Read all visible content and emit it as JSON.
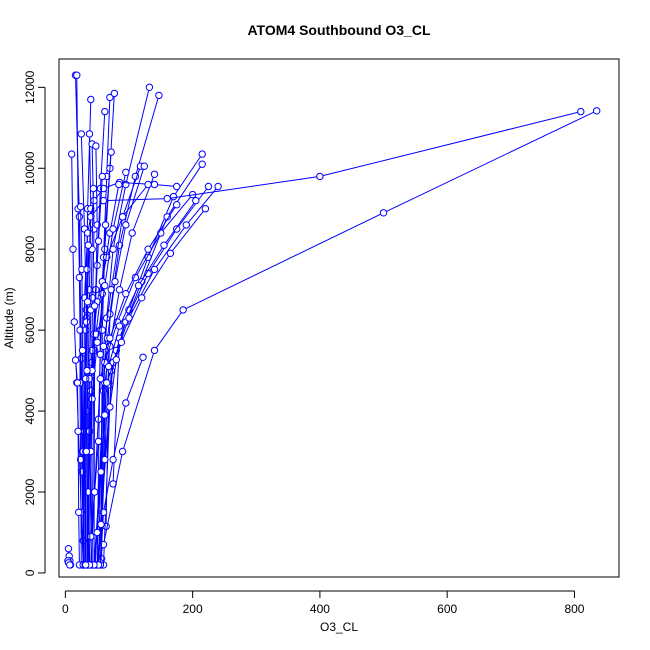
{
  "chart_data": {
    "type": "line",
    "title": "ATOM4 Southbound O3_CL",
    "xlabel": "O3_CL",
    "ylabel": "Altitude (m)",
    "xlim": [
      -10,
      870
    ],
    "ylim": [
      -100,
      12700
    ],
    "xticks": [
      0,
      200,
      400,
      600,
      800
    ],
    "yticks": [
      0,
      2000,
      4000,
      6000,
      8000,
      10000,
      12000
    ],
    "grid": false,
    "legend": "none",
    "marker": "open-circle",
    "colors": {
      "series": "#0000ff",
      "axes": "#000000"
    },
    "series": [
      {
        "points": [
          [
            16,
            12300
          ],
          [
            22,
            8800
          ],
          [
            25,
            5300
          ],
          [
            27,
            3000
          ],
          [
            28,
            800
          ],
          [
            28,
            200
          ]
        ]
      },
      {
        "points": [
          [
            18,
            12300
          ],
          [
            20,
            9000
          ],
          [
            24,
            6000
          ],
          [
            26,
            2500
          ],
          [
            29,
            200
          ]
        ]
      },
      {
        "points": [
          [
            40,
            11700
          ],
          [
            35,
            9000
          ],
          [
            33,
            6500
          ],
          [
            30,
            3500
          ],
          [
            29,
            200
          ]
        ]
      },
      {
        "points": [
          [
            10,
            10350
          ],
          [
            12,
            8000
          ],
          [
            14,
            6200
          ],
          [
            18,
            4700
          ],
          [
            25,
            1500
          ],
          [
            28,
            200
          ]
        ]
      },
      {
        "points": [
          [
            25,
            10850
          ],
          [
            30,
            8500
          ],
          [
            33,
            6300
          ],
          [
            35,
            4000
          ],
          [
            36,
            200
          ]
        ]
      },
      {
        "points": [
          [
            38,
            10850
          ],
          [
            40,
            9000
          ],
          [
            38,
            7000
          ],
          [
            36,
            5000
          ],
          [
            34,
            200
          ]
        ]
      },
      {
        "points": [
          [
            42,
            10600
          ],
          [
            45,
            8500
          ],
          [
            43,
            6800
          ],
          [
            41,
            5200
          ],
          [
            40,
            3000
          ],
          [
            42,
            200
          ]
        ]
      },
      {
        "points": [
          [
            48,
            10550
          ],
          [
            50,
            8600
          ],
          [
            48,
            7000
          ],
          [
            46,
            5500
          ],
          [
            45,
            200
          ]
        ]
      },
      {
        "points": [
          [
            62,
            11400
          ],
          [
            55,
            9500
          ],
          [
            50,
            7600
          ],
          [
            45,
            5900
          ],
          [
            42,
            200
          ]
        ]
      },
      {
        "points": [
          [
            70,
            11750
          ],
          [
            65,
            9800
          ],
          [
            60,
            7800
          ],
          [
            55,
            6000
          ],
          [
            50,
            200
          ]
        ]
      },
      {
        "points": [
          [
            77,
            11850
          ],
          [
            70,
            10000
          ],
          [
            62,
            8000
          ],
          [
            58,
            6000
          ],
          [
            56,
            200
          ]
        ]
      },
      {
        "points": [
          [
            132,
            12000
          ],
          [
            95,
            9600
          ],
          [
            75,
            8000
          ],
          [
            65,
            6300
          ],
          [
            60,
            4500
          ],
          [
            57,
            350
          ]
        ]
      },
      {
        "points": [
          [
            147,
            11800
          ],
          [
            110,
            9800
          ],
          [
            85,
            8100
          ],
          [
            70,
            6400
          ],
          [
            64,
            1150
          ]
        ]
      },
      {
        "points": [
          [
            72,
            10400
          ],
          [
            63,
            8600
          ],
          [
            58,
            6900
          ],
          [
            55,
            5400
          ],
          [
            52,
            3800
          ]
        ]
      },
      {
        "points": [
          [
            118,
            10050
          ],
          [
            90,
            8800
          ],
          [
            72,
            7000
          ],
          [
            60,
            5600
          ],
          [
            52,
            200
          ]
        ]
      },
      {
        "points": [
          [
            124,
            10050
          ],
          [
            95,
            8600
          ],
          [
            78,
            7200
          ],
          [
            66,
            5800
          ],
          [
            56,
            200
          ]
        ]
      },
      {
        "points": [
          [
            140,
            9850
          ],
          [
            105,
            8400
          ],
          [
            85,
            7000
          ],
          [
            70,
            5600
          ],
          [
            62,
            4700
          ],
          [
            55,
            200
          ]
        ]
      },
      {
        "points": [
          [
            215,
            10350
          ],
          [
            170,
            9300
          ],
          [
            130,
            7800
          ],
          [
            100,
            6500
          ],
          [
            80,
            5500
          ],
          [
            70,
            4650
          ]
        ]
      },
      {
        "points": [
          [
            215,
            10100
          ],
          [
            160,
            8800
          ],
          [
            120,
            7200
          ],
          [
            85,
            5800
          ],
          [
            75,
            2200
          ]
        ]
      },
      {
        "points": [
          [
            225,
            9550
          ],
          [
            175,
            8500
          ],
          [
            130,
            7400
          ],
          [
            95,
            6200
          ],
          [
            72,
            5000
          ],
          [
            60,
            200
          ]
        ]
      },
      {
        "points": [
          [
            240,
            9550
          ],
          [
            190,
            8600
          ],
          [
            140,
            7500
          ],
          [
            100,
            6300
          ],
          [
            75,
            5200
          ],
          [
            50,
            200
          ]
        ]
      },
      {
        "points": [
          [
            200,
            9350
          ],
          [
            150,
            8400
          ],
          [
            110,
            7300
          ],
          [
            82,
            6200
          ],
          [
            62,
            5200
          ],
          [
            47,
            200
          ]
        ]
      },
      {
        "points": [
          [
            205,
            9200
          ],
          [
            155,
            8100
          ],
          [
            115,
            7100
          ],
          [
            85,
            6100
          ],
          [
            68,
            5100
          ],
          [
            55,
            250
          ]
        ]
      },
      {
        "points": [
          [
            175,
            9100
          ],
          [
            130,
            8000
          ],
          [
            95,
            6900
          ],
          [
            70,
            5800
          ],
          [
            55,
            4800
          ],
          [
            40,
            200
          ]
        ]
      },
      {
        "points": [
          [
            220,
            9000
          ],
          [
            165,
            7900
          ],
          [
            120,
            6800
          ],
          [
            88,
            5700
          ],
          [
            65,
            4700
          ],
          [
            45,
            200
          ]
        ]
      },
      {
        "points": [
          [
            175,
            9550
          ],
          [
            140,
            9600
          ],
          [
            85,
            9650
          ],
          [
            60,
            9500
          ],
          [
            45,
            9200
          ],
          [
            35,
            8400
          ],
          [
            30,
            6800
          ],
          [
            28,
            200
          ]
        ]
      },
      {
        "points": [
          [
            130,
            9600
          ],
          [
            90,
            8800
          ],
          [
            65,
            7800
          ],
          [
            50,
            6700
          ],
          [
            42,
            5500
          ],
          [
            38,
            3500
          ],
          [
            36,
            200
          ]
        ]
      },
      {
        "points": [
          [
            84,
            9600
          ],
          [
            70,
            8400
          ],
          [
            58,
            7200
          ],
          [
            48,
            5900
          ],
          [
            40,
            4500
          ],
          [
            35,
            200
          ]
        ]
      },
      {
        "points": [
          [
            95,
            9900
          ],
          [
            75,
            8500
          ],
          [
            62,
            7100
          ],
          [
            50,
            5700
          ],
          [
            42,
            4300
          ],
          [
            38,
            200
          ]
        ]
      },
      {
        "points": [
          [
            810,
            11400
          ],
          [
            400,
            9800
          ],
          [
            160,
            9250
          ],
          [
            60,
            9200
          ],
          [
            40,
            8800
          ],
          [
            32,
            6000
          ],
          [
            29,
            200
          ]
        ]
      },
      {
        "points": [
          [
            835,
            11420
          ],
          [
            500,
            8900
          ],
          [
            185,
            6500
          ],
          [
            140,
            5500
          ],
          [
            90,
            3000
          ],
          [
            60,
            700
          ],
          [
            50,
            200
          ]
        ]
      },
      {
        "points": [
          [
            122,
            5330
          ],
          [
            95,
            4200
          ],
          [
            75,
            2800
          ],
          [
            60,
            1500
          ],
          [
            55,
            200
          ]
        ]
      },
      {
        "points": [
          [
            80,
            5270
          ],
          [
            70,
            4100
          ],
          [
            62,
            2800
          ],
          [
            56,
            1200
          ],
          [
            52,
            200
          ]
        ]
      },
      {
        "points": [
          [
            62,
            3900
          ],
          [
            56,
            2500
          ],
          [
            50,
            1000
          ],
          [
            45,
            200
          ]
        ]
      },
      {
        "points": [
          [
            52,
            3250
          ],
          [
            46,
            2000
          ],
          [
            40,
            900
          ],
          [
            35,
            200
          ]
        ]
      },
      {
        "points": [
          [
            22,
            7300
          ],
          [
            23,
            6000
          ],
          [
            23,
            4700
          ],
          [
            24,
            2800
          ],
          [
            25,
            200
          ]
        ]
      },
      {
        "points": [
          [
            16,
            5260
          ],
          [
            19,
            4700
          ],
          [
            20,
            3500
          ],
          [
            21,
            1500
          ],
          [
            22,
            200
          ]
        ]
      },
      {
        "points": [
          [
            24,
            9050
          ],
          [
            26,
            7500
          ],
          [
            27,
            5500
          ],
          [
            28,
            3000
          ],
          [
            28,
            200
          ]
        ]
      },
      {
        "points": [
          [
            44,
            9500
          ],
          [
            42,
            8000
          ],
          [
            40,
            6500
          ],
          [
            38,
            4800
          ],
          [
            36,
            2000
          ],
          [
            35,
            200
          ]
        ]
      },
      {
        "points": [
          [
            58,
            9800
          ],
          [
            52,
            8200
          ],
          [
            46,
            6600
          ],
          [
            42,
            5000
          ],
          [
            40,
            3000
          ],
          [
            38,
            200
          ]
        ]
      },
      {
        "points": [
          [
            34,
            7500
          ],
          [
            33,
            6200
          ],
          [
            32,
            4800
          ],
          [
            32,
            3000
          ],
          [
            31,
            200
          ]
        ]
      },
      {
        "points": [
          [
            36,
            8100
          ],
          [
            35,
            6700
          ],
          [
            34,
            5000
          ],
          [
            33,
            3000
          ],
          [
            32,
            200
          ]
        ]
      },
      {
        "points": [
          [
            5,
            600
          ],
          [
            6,
            420
          ],
          [
            7,
            300
          ],
          [
            8,
            200
          ]
        ]
      },
      {
        "points": [
          [
            4,
            300
          ],
          [
            5,
            250
          ],
          [
            7,
            200
          ]
        ]
      }
    ]
  }
}
